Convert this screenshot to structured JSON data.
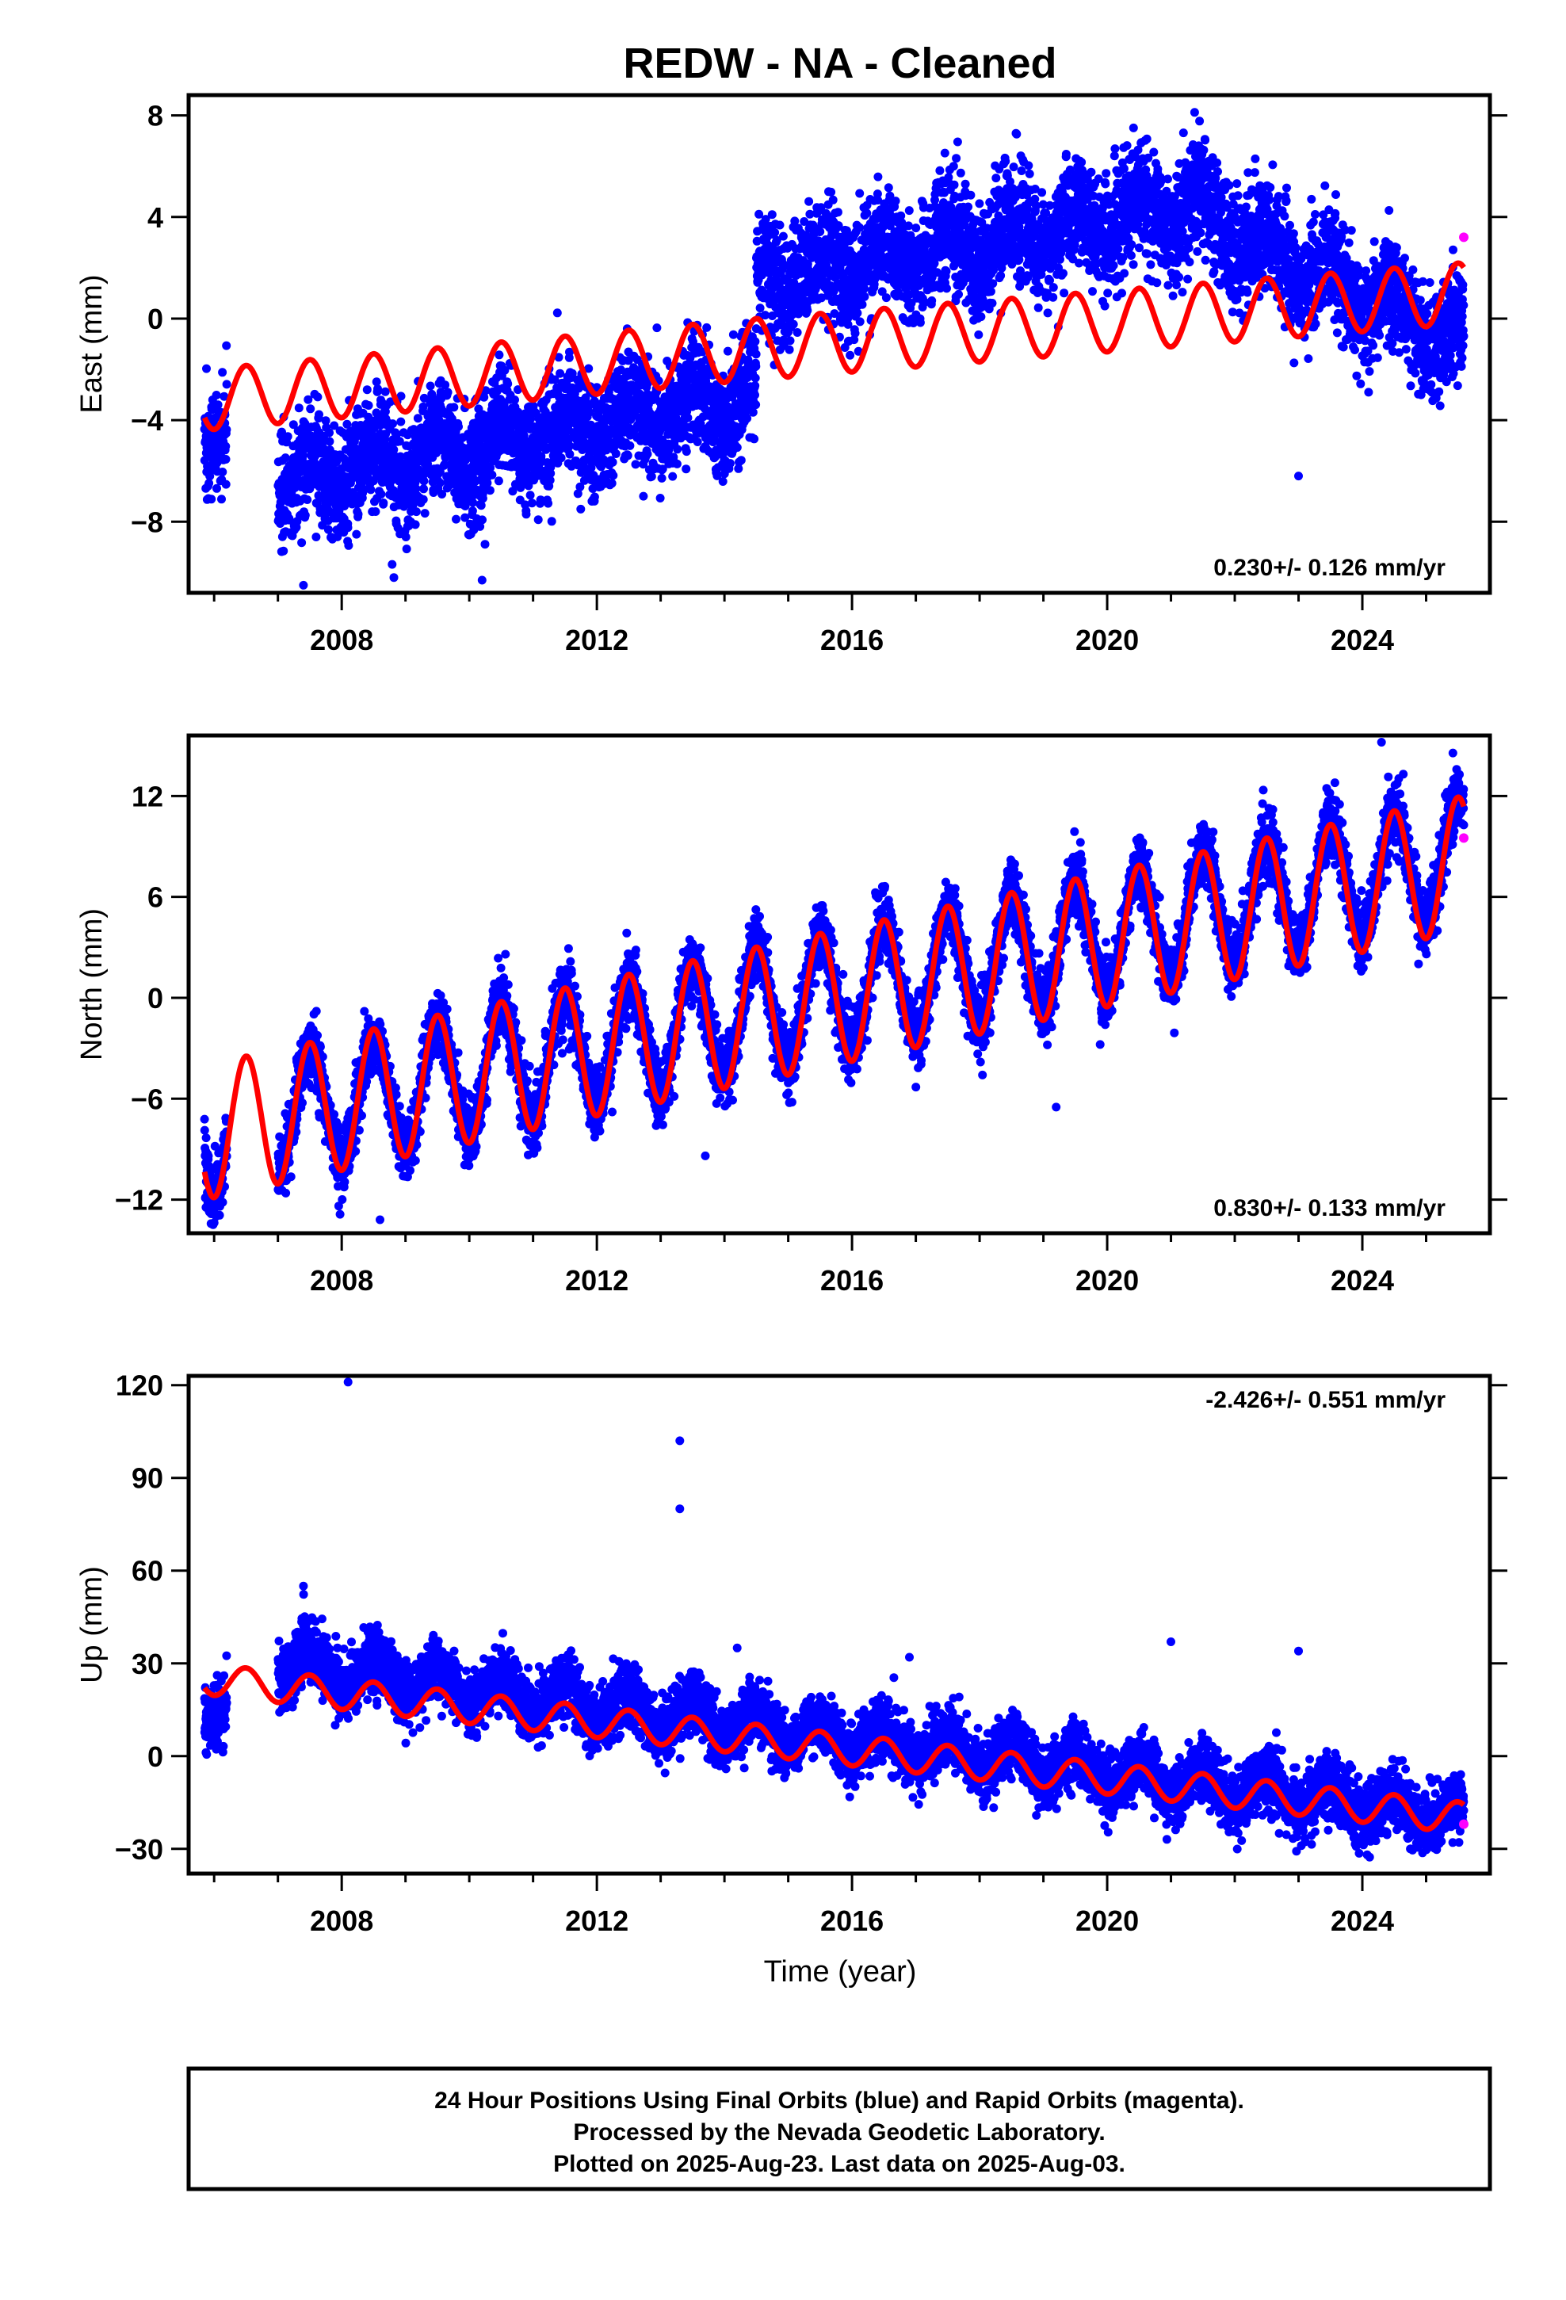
{
  "title": "REDW  - NA - Cleaned",
  "colors": {
    "final_orbits": "#0000ff",
    "rapid_orbits": "#ff00ff",
    "model_fit": "#ff0000",
    "frame": "#000000"
  },
  "x_axis": {
    "label": "Time (year)",
    "range": [
      2005.6,
      2026.0
    ],
    "major_ticks": [
      2008,
      2012,
      2016,
      2020,
      2024
    ],
    "minor_ticks": [
      2006,
      2007,
      2009,
      2010,
      2011,
      2013,
      2014,
      2015,
      2017,
      2018,
      2019,
      2021,
      2022,
      2023,
      2025
    ]
  },
  "chart_data": [
    {
      "type": "scatter",
      "id": "east",
      "ylabel": "East (mm)",
      "ylim": [
        -10.8,
        8.8
      ],
      "yticks": [
        8,
        4,
        0,
        -4,
        -8
      ],
      "yticklabels": [
        "8",
        "4",
        "0",
        "−4",
        "−8"
      ],
      "rate_text": "0.230+/- 0.126 mm/yr",
      "rate_position": "bottom-right",
      "data_start": 2005.85,
      "data_end": 2025.59,
      "gaps": [
        [
          2006.2,
          2007.0
        ]
      ],
      "position_segments": [
        {
          "from": 2005.85,
          "to": 2006.2,
          "start": -4.5,
          "end": -4.0
        },
        {
          "from": 2007.0,
          "to": 2014.5,
          "start": -6.5,
          "end": -3.0
        },
        {
          "from": 2014.5,
          "to": 2021.5,
          "start": 1.5,
          "end": 4.5
        },
        {
          "from": 2021.5,
          "to": 2025.59,
          "start": 4.0,
          "end": -1.0
        }
      ],
      "scatter_noise": 1.1,
      "seasonal_amplitude": 0.8,
      "outliers": [
        [
          2023.0,
          -6.2
        ],
        [
          2010.2,
          -10.3
        ],
        [
          2007.4,
          -10.5
        ]
      ],
      "model": {
        "segments": [
          {
            "from": 2005.85,
            "to": 2014.5,
            "start": -3.2,
            "end": -1.2
          },
          {
            "from": 2014.5,
            "to": 2025.59,
            "start": -1.2,
            "end": 1.0
          }
        ],
        "seasonal_amplitude": 1.2
      },
      "rapid_points": [
        [
          2025.59,
          3.2
        ]
      ]
    },
    {
      "type": "scatter",
      "id": "north",
      "ylabel": "North (mm)",
      "ylim": [
        -14,
        15.6
      ],
      "yticks": [
        12,
        6,
        0,
        -6,
        -12
      ],
      "yticklabels": [
        "12",
        "6",
        "0",
        "−6",
        "−12"
      ],
      "rate_text": "0.830+/- 0.133 mm/yr",
      "rate_position": "bottom-right",
      "data_start": 2005.85,
      "data_end": 2025.59,
      "gaps": [
        [
          2006.2,
          2007.0
        ]
      ],
      "position_segments": [
        {
          "from": 2005.85,
          "to": 2025.59,
          "start": -8.0,
          "end": 8.5
        }
      ],
      "scatter_noise": 1.0,
      "seasonal_amplitude": 3.5,
      "outliers": [
        [
          2008.6,
          -13.2
        ],
        [
          2019.2,
          -6.5
        ],
        [
          2024.3,
          15.2
        ],
        [
          2013.7,
          -9.4
        ]
      ],
      "model": {
        "segments": [
          {
            "from": 2005.85,
            "to": 2025.59,
            "start": -8.0,
            "end": 8.0
          }
        ],
        "seasonal_amplitude": 4.0
      },
      "rapid_points": [
        [
          2025.59,
          9.5
        ]
      ]
    },
    {
      "type": "scatter",
      "id": "up",
      "ylabel": "Up (mm)",
      "xlabel": "Time (year)",
      "ylim": [
        -38,
        123
      ],
      "yticks": [
        120,
        90,
        60,
        30,
        0,
        -30
      ],
      "yticklabels": [
        "120",
        "90",
        "60",
        "30",
        "0",
        "−30"
      ],
      "rate_text": "-2.426+/- 0.551 mm/yr",
      "rate_position": "top-right",
      "data_start": 2005.85,
      "data_end": 2025.59,
      "gaps": [
        [
          2006.2,
          2007.0
        ]
      ],
      "position_segments": [
        {
          "from": 2005.85,
          "to": 2006.2,
          "start": 15,
          "end": 20
        },
        {
          "from": 2007.0,
          "to": 2025.59,
          "start": 30,
          "end": -20
        }
      ],
      "scatter_noise": 5.0,
      "seasonal_amplitude": 5.0,
      "outliers": [
        [
          2008.1,
          121
        ],
        [
          2013.3,
          102
        ],
        [
          2013.3,
          80
        ],
        [
          2007.4,
          55
        ],
        [
          2021.0,
          37
        ],
        [
          2023.0,
          34
        ],
        [
          2014.2,
          35
        ],
        [
          2016.9,
          32
        ]
      ],
      "model": {
        "segments": [
          {
            "from": 2005.85,
            "to": 2025.59,
            "start": 25,
            "end": -20
          }
        ],
        "seasonal_amplitude": 5.0
      },
      "rapid_points": [
        [
          2025.59,
          -22
        ]
      ]
    }
  ],
  "footer": {
    "line1": "24 Hour Positions Using Final Orbits (blue) and Rapid Orbits (magenta).",
    "line2": "Processed by the Nevada Geodetic Laboratory.",
    "line3": "Plotted on 2025-Aug-23. Last data on 2025-Aug-03."
  }
}
